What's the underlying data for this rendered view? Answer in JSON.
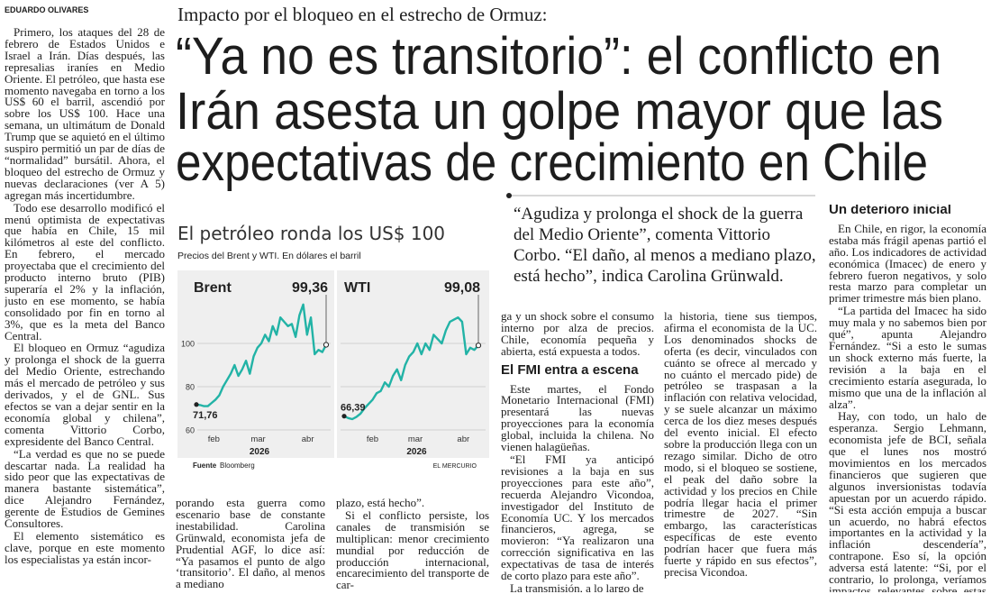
{
  "byline": "EDUARDO OLIVARES",
  "kicker": "Impacto por el bloqueo en el estrecho de Ormuz:",
  "headline": [
    "“Ya no es transitorio”: el conflicto en",
    "Irán asesta un golpe mayor que las",
    "expectativas de crecimiento en Chile"
  ],
  "pull_quote": "“Agudiza y prolonga el shock de la guerra del Medio Oriente”, comenta Vittorio Corbo. “El daño, al menos a mediano plazo, está hecho”, indica Carolina Grünwald.",
  "chart": {
    "type": "line",
    "title": "El petróleo ronda los US$ 100",
    "subtitle": "Precios del Brent y WTI. En dólares el barril",
    "ylim": [
      60,
      130
    ],
    "yticks": [
      60,
      80,
      100
    ],
    "x_labels": [
      "feb",
      "mar",
      "abr"
    ],
    "year": "2026",
    "series": [
      {
        "name": "Brent",
        "color": "#22b3a6",
        "start_label": "71,76",
        "end_label": "99,36",
        "values": [
          71.76,
          71.5,
          71,
          71,
          72.5,
          74,
          76,
          80,
          83,
          86,
          90,
          85,
          88,
          92,
          86,
          94,
          98,
          100,
          104,
          101,
          108,
          104,
          112,
          110,
          108,
          109,
          103,
          113,
          118,
          104,
          112,
          95,
          97,
          96,
          99.36
        ]
      },
      {
        "name": "WTI",
        "color": "#22b3a6",
        "start_label": "66,39",
        "end_label": "99,08",
        "values": [
          66.39,
          65.5,
          65,
          66,
          67.5,
          70,
          72,
          74,
          77,
          78,
          82,
          80,
          85,
          88,
          83,
          90,
          94,
          96,
          100,
          95,
          100,
          97,
          104,
          102,
          100,
          106,
          110,
          111,
          112,
          110,
          95,
          98,
          97,
          99.08
        ]
      }
    ],
    "source_label": "Fuente",
    "source": "Bloomberg",
    "credit": "EL MERCURIO"
  },
  "columns": [
    [
      {
        "text": "Primero, los ataques del 28 de febrero de Estados Unidos e Israel a Irán. Días después, las represalias iraníes en Medio Oriente. El petróleo, que hasta ese momento navegaba en torno a los US$ 60 el barril, ascendió por sobre los US$ 100. Hace una semana, un ultimátum de Donald Trump que se aquietó en el último suspiro permitió un par de días de “normalidad” bursátil. Ahora, el bloqueo del estrecho de Ormuz y nuevas declaraciones (ver A 5) agregan más incertidumbre."
      },
      {
        "text": "Todo ese desarrollo modificó el menú optimista de expectativas que había en Chile, 15 mil kilómetros al este del conflicto. En febrero, el mercado proyectaba que el crecimiento del producto interno bruto (PIB) superaría el 2% y la inflación, justo en ese momento, se había consolidado por fin en torno al 3%, que es la meta del Banco Central."
      },
      {
        "text": "El bloqueo en Ormuz “agudiza y prolonga el shock de la guerra del Medio Oriente, estrechando más el mercado de petróleo y sus derivados, y el de GNL. Sus efectos se van a dejar sentir en la economía global y chilena”, comenta Vittorio Corbo, expresidente del Banco Central."
      },
      {
        "text": "“La verdad es que no se puede descartar nada. La realidad ha sido peor que las expectativas de manera bastante sistemática”, dice Alejandro Fernández, gerente de Estudios de Gemines Consultores."
      },
      {
        "text": "El elemento sistemático es clave, porque en este momento los especialistas ya están incor-"
      }
    ],
    [
      {
        "text": "porando esta guerra como escenario base de constante inestabilidad. Carolina Grünwald, economista jefa de Prudential AGF, lo dice así: “Ya pasamos el punto de algo ‘transitorio’. El daño, al menos a mediano"
      }
    ],
    [
      {
        "text": "plazo, está hecho”."
      },
      {
        "text": "Si el conflicto persiste, los canales de transmisión se multiplican: menor crecimiento mundial por reducción de producción internacional, encarecimiento del transporte de car-"
      }
    ],
    [
      {
        "text": "ga y un shock sobre el consumo interno por alza de precios. Chile, economía pequeña y abierta, está expuesta a todos."
      },
      {
        "heading": "El FMI entra a escena"
      },
      {
        "text": "Este martes, el Fondo Monetario Internacional (FMI) presentará las nuevas proyecciones para la economía global, incluida la chilena. No vienen halagüeñas."
      },
      {
        "text": "“El FMI ya anticipó revisiones a la baja en sus proyecciones para este año”, recuerda Alejandro Vicondoa, investigador del Instituto de Economía UC. Y los mercados financieros, agrega, se movieron: “Ya realizaron una corrección significativa en las expectativas de tasa de interés de corto plazo para este año”."
      },
      {
        "text": "La transmisión, a lo largo de"
      }
    ],
    [
      {
        "text": "la historia, tiene sus tiempos, afirma el economista de la UC. Los denominados shocks de oferta (es decir, vinculados con cuánto se ofrece al mercado y no cuánto el mercado pide) de petróleo se traspasan a la inflación con relativa velocidad, y se suele alcanzar un máximo cerca de los diez meses después del evento inicial. El efecto sobre la producción llega con un rezago similar. Dicho de otro modo, si el bloqueo se sostiene, el peak del daño sobre la actividad y los precios en Chile podría llegar hacia el primer trimestre de 2027. “Sin embargo, las características específicas de este evento podrían hacer que fuera más fuerte y rápido en sus efectos”, precisa Vicondoa."
      }
    ],
    [
      {
        "heading": "Un deterioro inicial"
      },
      {
        "text": "En Chile, en rigor, la economía estaba más frágil apenas partió el año. Los indicadores de actividad económica (Imacec) de enero y febrero fueron negativos, y solo resta marzo para completar un primer trimestre más bien plano."
      },
      {
        "text": "“La partida del Imacec ha sido muy mala y no sabemos bien por qué”, apunta Alejandro Fernández. “Si a esto le sumas un shock externo más fuerte, la revisión a la baja en el crecimiento estaría asegurada, lo mismo que una de la inflación al alza”."
      },
      {
        "text": "Hay, con todo, un halo de esperanza. Sergio Lehmann, economista jefe de BCI, señala que el lunes nos mostró movimientos en los mercados financieros que sugieren que algunos inversionistas todavía apuestan por un acuerdo rápido. “Si esta acción empuja a buscar un acuerdo, no habrá efectos importantes en la actividad y la inflación descendería”, contrapone. Eso sí, la opción adversa está latente: “Si, por el contrario, lo prolonga, veríamos impactos relevantes sobre estas variables”."
      }
    ]
  ]
}
